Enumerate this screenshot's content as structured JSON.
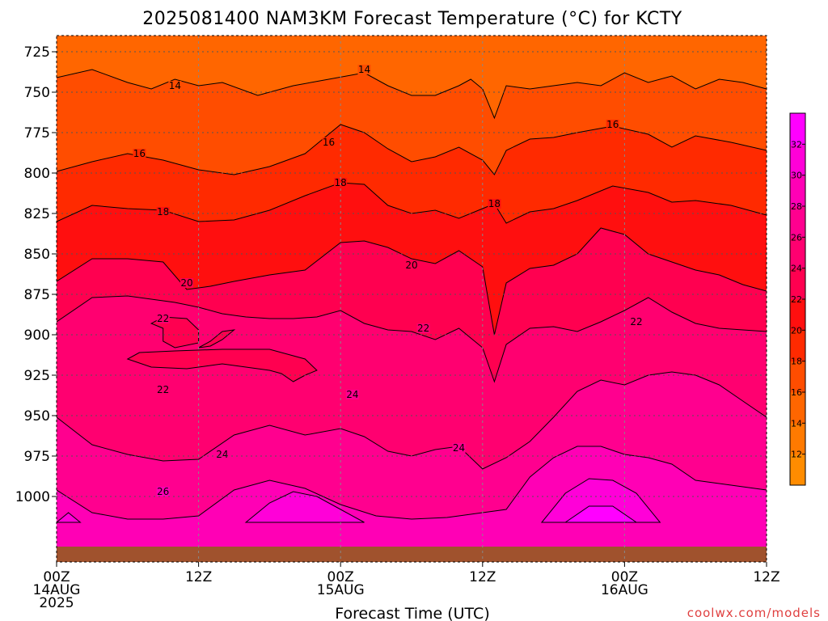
{
  "chart_data": {
    "type": "heatmap",
    "title": "2025081400 NAM3KM Forecast Temperature (°C) for KCTY",
    "xlabel": "Forecast Time (UTC)",
    "ylabel": "",
    "x_range_hours": [
      0,
      60
    ],
    "y_range_hpa": [
      1018,
      715
    ],
    "x_ticks": [
      {
        "hour": 0,
        "lines": [
          "00Z",
          "14AUG",
          "2025"
        ]
      },
      {
        "hour": 12,
        "lines": [
          "12Z"
        ]
      },
      {
        "hour": 24,
        "lines": [
          "00Z",
          "15AUG"
        ]
      },
      {
        "hour": 36,
        "lines": [
          "12Z"
        ]
      },
      {
        "hour": 48,
        "lines": [
          "00Z",
          "16AUG"
        ]
      },
      {
        "hour": 60,
        "lines": [
          "12Z"
        ]
      }
    ],
    "y_ticks": [
      725,
      750,
      775,
      800,
      825,
      850,
      875,
      900,
      925,
      950,
      975,
      1000
    ],
    "colorbar": {
      "ticks": [
        12,
        14,
        16,
        18,
        20,
        22,
        24,
        26,
        28,
        30,
        32
      ],
      "colors": [
        "#ff8c00",
        "#ff7a00",
        "#ff6600",
        "#ff4d00",
        "#ff2a00",
        "#ff0f0f",
        "#ff0050",
        "#ff0070",
        "#ff008f",
        "#ff00b5",
        "#ff00d8",
        "#ff00ff"
      ]
    },
    "contour_levels": [
      14,
      16,
      18,
      20,
      22,
      24,
      26
    ],
    "contour_labels": [
      {
        "text": "14",
        "hour": 10.0,
        "p": 747
      },
      {
        "text": "14",
        "hour": 26.0,
        "p": 737
      },
      {
        "text": "16",
        "hour": 7.0,
        "p": 789
      },
      {
        "text": "16",
        "hour": 23.0,
        "p": 782
      },
      {
        "text": "16",
        "hour": 47.0,
        "p": 771
      },
      {
        "text": "18",
        "hour": 9.0,
        "p": 825
      },
      {
        "text": "18",
        "hour": 24.0,
        "p": 807
      },
      {
        "text": "18",
        "hour": 37.0,
        "p": 820
      },
      {
        "text": "20",
        "hour": 11.0,
        "p": 869
      },
      {
        "text": "20",
        "hour": 30.0,
        "p": 858
      },
      {
        "text": "22",
        "hour": 9.0,
        "p": 891
      },
      {
        "text": "22",
        "hour": 31.0,
        "p": 897
      },
      {
        "text": "22",
        "hour": 49.0,
        "p": 893
      },
      {
        "text": "22",
        "hour": 9.0,
        "p": 935
      },
      {
        "text": "24",
        "hour": 25.0,
        "p": 938
      },
      {
        "text": "24",
        "hour": 14.0,
        "p": 975
      },
      {
        "text": "24",
        "hour": 34.0,
        "p": 971
      },
      {
        "text": "26",
        "hour": 9.0,
        "p": 998
      }
    ],
    "isotherms": [
      {
        "level": 14,
        "points": [
          [
            0,
            741
          ],
          [
            3,
            736
          ],
          [
            6,
            744
          ],
          [
            8,
            748
          ],
          [
            10,
            742
          ],
          [
            12,
            746
          ],
          [
            14,
            744
          ],
          [
            17,
            752
          ],
          [
            20,
            746
          ],
          [
            23,
            742
          ],
          [
            26,
            738
          ],
          [
            28,
            746
          ],
          [
            30,
            752
          ],
          [
            32,
            752
          ],
          [
            34,
            746
          ],
          [
            35,
            742
          ],
          [
            36,
            748
          ],
          [
            37,
            766
          ],
          [
            38,
            746
          ],
          [
            40,
            748
          ],
          [
            42,
            746
          ],
          [
            44,
            744
          ],
          [
            46,
            746
          ],
          [
            48,
            738
          ],
          [
            50,
            744
          ],
          [
            52,
            740
          ],
          [
            54,
            748
          ],
          [
            56,
            742
          ],
          [
            58,
            744
          ],
          [
            60,
            748
          ]
        ]
      },
      {
        "level": 16,
        "points": [
          [
            0,
            799
          ],
          [
            3,
            793
          ],
          [
            6,
            788
          ],
          [
            9,
            792
          ],
          [
            12,
            798
          ],
          [
            15,
            801
          ],
          [
            18,
            796
          ],
          [
            21,
            788
          ],
          [
            24,
            770
          ],
          [
            26,
            775
          ],
          [
            28,
            785
          ],
          [
            30,
            793
          ],
          [
            32,
            790
          ],
          [
            34,
            784
          ],
          [
            36,
            792
          ],
          [
            37,
            801
          ],
          [
            38,
            786
          ],
          [
            40,
            779
          ],
          [
            42,
            778
          ],
          [
            44,
            775
          ],
          [
            47,
            771
          ],
          [
            50,
            776
          ],
          [
            52,
            784
          ],
          [
            54,
            777
          ],
          [
            57,
            781
          ],
          [
            60,
            786
          ]
        ]
      },
      {
        "level": 18,
        "points": [
          [
            0,
            830
          ],
          [
            3,
            820
          ],
          [
            6,
            822
          ],
          [
            9,
            823
          ],
          [
            12,
            830
          ],
          [
            15,
            829
          ],
          [
            18,
            823
          ],
          [
            21,
            814
          ],
          [
            24,
            806
          ],
          [
            26,
            807
          ],
          [
            28,
            820
          ],
          [
            30,
            825
          ],
          [
            32,
            823
          ],
          [
            34,
            828
          ],
          [
            36,
            822
          ],
          [
            37,
            819
          ],
          [
            38,
            831
          ],
          [
            40,
            824
          ],
          [
            42,
            822
          ],
          [
            44,
            817
          ],
          [
            47,
            808
          ],
          [
            50,
            812
          ],
          [
            52,
            818
          ],
          [
            54,
            817
          ],
          [
            57,
            820
          ],
          [
            60,
            826
          ]
        ]
      },
      {
        "level": 20,
        "points": [
          [
            0,
            867
          ],
          [
            3,
            853
          ],
          [
            6,
            853
          ],
          [
            9,
            855
          ],
          [
            11,
            872
          ],
          [
            13,
            870
          ],
          [
            15,
            867
          ],
          [
            18,
            863
          ],
          [
            21,
            860
          ],
          [
            24,
            843
          ],
          [
            26,
            842
          ],
          [
            28,
            846
          ],
          [
            30,
            853
          ],
          [
            32,
            856
          ],
          [
            34,
            848
          ],
          [
            36,
            858
          ],
          [
            37,
            900
          ],
          [
            38,
            868
          ],
          [
            40,
            859
          ],
          [
            42,
            857
          ],
          [
            44,
            850
          ],
          [
            46,
            834
          ],
          [
            48,
            838
          ],
          [
            50,
            850
          ],
          [
            52,
            855
          ],
          [
            54,
            860
          ],
          [
            56,
            863
          ],
          [
            58,
            869
          ],
          [
            60,
            873
          ]
        ]
      },
      {
        "level": 22,
        "points": [
          [
            0,
            892
          ],
          [
            3,
            877
          ],
          [
            6,
            876
          ],
          [
            8,
            878
          ],
          [
            10,
            880
          ],
          [
            12,
            883
          ],
          [
            14,
            887
          ],
          [
            16,
            889
          ],
          [
            18,
            890
          ],
          [
            20,
            890
          ],
          [
            22,
            889
          ],
          [
            24,
            885
          ],
          [
            26,
            893
          ],
          [
            28,
            897
          ],
          [
            30,
            898
          ],
          [
            32,
            903
          ],
          [
            34,
            896
          ],
          [
            36,
            908
          ],
          [
            37,
            929
          ],
          [
            38,
            906
          ],
          [
            40,
            896
          ],
          [
            42,
            895
          ],
          [
            44,
            898
          ],
          [
            46,
            892
          ],
          [
            48,
            885
          ],
          [
            50,
            877
          ],
          [
            52,
            886
          ],
          [
            54,
            893
          ],
          [
            56,
            896
          ],
          [
            58,
            897
          ],
          [
            60,
            898
          ]
        ]
      },
      {
        "level": 24,
        "points": [
          [
            0,
            951
          ],
          [
            3,
            968
          ],
          [
            6,
            974
          ],
          [
            9,
            978
          ],
          [
            12,
            977
          ],
          [
            15,
            962
          ],
          [
            18,
            956
          ],
          [
            21,
            962
          ],
          [
            24,
            958
          ],
          [
            26,
            963
          ],
          [
            28,
            972
          ],
          [
            30,
            975
          ],
          [
            32,
            971
          ],
          [
            34,
            969
          ],
          [
            36,
            983
          ],
          [
            38,
            976
          ],
          [
            40,
            966
          ],
          [
            42,
            951
          ],
          [
            44,
            935
          ],
          [
            46,
            928
          ],
          [
            48,
            931
          ],
          [
            50,
            925
          ],
          [
            52,
            923
          ],
          [
            54,
            925
          ],
          [
            56,
            931
          ],
          [
            58,
            941
          ],
          [
            60,
            951
          ]
        ]
      },
      {
        "level": 26,
        "points": [
          [
            0,
            996
          ],
          [
            3,
            1010
          ],
          [
            6,
            1014
          ],
          [
            9,
            1014
          ],
          [
            12,
            1012
          ],
          [
            15,
            996
          ],
          [
            18,
            990
          ],
          [
            21,
            995
          ],
          [
            24,
            1005
          ],
          [
            27,
            1012
          ],
          [
            30,
            1014
          ],
          [
            33,
            1013
          ],
          [
            36,
            1010
          ],
          [
            38,
            1008
          ],
          [
            40,
            988
          ],
          [
            42,
            976
          ],
          [
            44,
            969
          ],
          [
            46,
            969
          ],
          [
            48,
            974
          ],
          [
            50,
            976
          ],
          [
            52,
            980
          ],
          [
            54,
            990
          ],
          [
            56,
            992
          ],
          [
            58,
            994
          ],
          [
            60,
            996
          ]
        ]
      }
    ],
    "warm_pockets": [
      {
        "level": 28,
        "points": [
          [
            16,
            1016
          ],
          [
            18,
            1004
          ],
          [
            20,
            997
          ],
          [
            22,
            1000
          ],
          [
            24,
            1008
          ],
          [
            26,
            1016
          ]
        ]
      },
      {
        "level": 28,
        "points": [
          [
            41,
            1016
          ],
          [
            43,
            998
          ],
          [
            45,
            989
          ],
          [
            47,
            990
          ],
          [
            49,
            998
          ],
          [
            51,
            1016
          ]
        ]
      },
      {
        "level": 30,
        "points": [
          [
            43,
            1016
          ],
          [
            45,
            1006
          ],
          [
            47,
            1006
          ],
          [
            49,
            1016
          ]
        ]
      },
      {
        "level": 28,
        "points": [
          [
            0,
            1016
          ],
          [
            1,
            1010
          ],
          [
            2,
            1016
          ]
        ]
      }
    ],
    "cool_pockets": [
      {
        "level": 22,
        "points": [
          [
            6,
            915
          ],
          [
            8,
            920
          ],
          [
            11,
            921
          ],
          [
            14,
            918
          ],
          [
            16,
            920
          ],
          [
            18,
            922
          ],
          [
            19,
            924
          ],
          [
            20,
            929
          ],
          [
            21,
            925
          ],
          [
            22,
            922
          ],
          [
            21,
            915
          ],
          [
            18,
            909
          ],
          [
            14,
            909
          ],
          [
            10,
            910
          ],
          [
            7,
            911
          ]
        ]
      },
      {
        "level": 22,
        "points": [
          [
            8,
            893
          ],
          [
            9,
            896
          ],
          [
            9,
            904
          ],
          [
            10,
            908
          ],
          [
            12,
            905
          ],
          [
            12,
            897
          ],
          [
            11,
            890
          ],
          [
            9,
            889
          ]
        ]
      },
      {
        "level": 22,
        "points": [
          [
            12,
            908
          ],
          [
            13,
            904
          ],
          [
            14,
            898
          ],
          [
            15,
            897
          ],
          [
            14,
            903
          ],
          [
            13,
            907
          ]
        ]
      }
    ],
    "colors": {
      "ground": "#a0522d",
      "grid": "#555555",
      "credit": "#e04040"
    }
  },
  "credit": "coolwx.com/models"
}
